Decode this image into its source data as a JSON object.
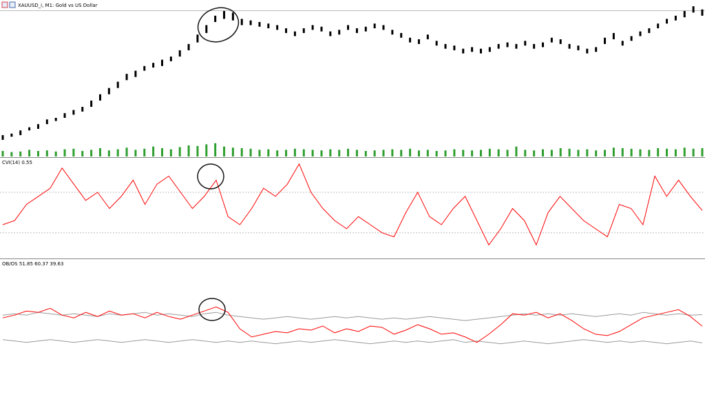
{
  "chart_data": [
    {
      "type": "candlestick",
      "title": "XAUUSD_i, M1: Gold vs US Dollar",
      "color": "#000000",
      "ylim": [
        0,
        100
      ],
      "high": [
        14,
        15,
        17,
        19,
        21,
        24,
        25,
        28,
        30,
        32,
        36,
        40,
        44,
        48,
        53,
        55,
        58,
        60,
        62,
        64,
        68,
        72,
        78,
        84,
        90,
        93,
        92,
        88,
        87,
        86,
        85,
        84,
        82,
        80,
        82,
        84,
        83,
        80,
        81,
        84,
        82,
        83,
        85,
        84,
        81,
        79,
        76,
        75,
        78,
        74,
        72,
        71,
        69,
        70,
        69,
        70,
        72,
        73,
        72,
        74,
        72,
        73,
        76,
        75,
        72,
        71,
        69,
        70,
        76,
        79,
        74,
        77,
        80,
        82,
        85,
        88,
        90,
        93,
        96,
        94
      ],
      "low": [
        11,
        13,
        14,
        17,
        18,
        21,
        23,
        25,
        27,
        29,
        32,
        36,
        40,
        44,
        49,
        51,
        55,
        57,
        58,
        61,
        64,
        68,
        73,
        79,
        86,
        88,
        87,
        84,
        84,
        83,
        82,
        81,
        79,
        77,
        79,
        81,
        80,
        77,
        78,
        81,
        79,
        80,
        82,
        81,
        78,
        76,
        73,
        72,
        75,
        71,
        69,
        68,
        66,
        67,
        66,
        67,
        69,
        70,
        69,
        71,
        69,
        70,
        73,
        72,
        69,
        68,
        66,
        67,
        72,
        75,
        71,
        74,
        77,
        79,
        82,
        85,
        87,
        89,
        92,
        90
      ],
      "volume": {
        "color": "#2e9e2e",
        "ylim": [
          0,
          30
        ],
        "values": [
          10,
          8,
          9,
          12,
          10,
          11,
          9,
          13,
          14,
          10,
          12,
          15,
          11,
          13,
          16,
          12,
          14,
          18,
          15,
          13,
          17,
          20,
          19,
          22,
          24,
          18,
          16,
          15,
          14,
          12,
          13,
          11,
          12,
          14,
          13,
          12,
          11,
          13,
          12,
          14,
          12,
          10,
          11,
          12,
          13,
          12,
          14,
          11,
          12,
          10,
          11,
          13,
          12,
          11,
          12,
          14,
          13,
          12,
          18,
          12,
          11,
          13,
          12,
          15,
          14,
          12,
          13,
          11,
          12,
          16,
          15,
          14,
          13,
          12,
          15,
          14,
          13,
          16,
          14,
          15
        ]
      }
    },
    {
      "type": "line",
      "title": "CVI(14)",
      "color": "#ff0000",
      "ylim": [
        -0.6,
        1.8
      ],
      "levels": [
        0,
        1
      ],
      "values": [
        0.2,
        0.3,
        0.7,
        0.9,
        1.1,
        1.6,
        1.2,
        0.8,
        1.0,
        0.6,
        0.9,
        1.3,
        0.7,
        1.2,
        1.4,
        1.0,
        0.6,
        0.9,
        1.3,
        0.4,
        0.2,
        0.6,
        1.1,
        0.9,
        1.2,
        1.7,
        1.0,
        0.6,
        0.3,
        0.1,
        0.4,
        0.2,
        0.0,
        -0.1,
        0.5,
        1.0,
        0.4,
        0.2,
        0.6,
        0.9,
        0.3,
        -0.3,
        0.1,
        0.6,
        0.3,
        -0.3,
        0.5,
        0.9,
        0.6,
        0.3,
        0.1,
        -0.1,
        0.7,
        0.6,
        0.2,
        1.4,
        0.9,
        1.3,
        0.9,
        0.55
      ]
    },
    {
      "type": "line",
      "title": "OB/OS",
      "ylim": [
        0,
        100
      ],
      "series": [
        {
          "color": "#ff0000",
          "values": [
            58,
            60,
            63,
            62,
            65,
            60,
            58,
            62,
            59,
            63,
            60,
            61,
            58,
            62,
            59,
            57,
            60,
            63,
            66,
            62,
            50,
            44,
            46,
            48,
            47,
            50,
            49,
            52,
            47,
            50,
            48,
            52,
            51,
            46,
            49,
            53,
            50,
            46,
            47,
            44,
            40,
            46,
            53,
            61,
            60,
            62,
            58,
            61,
            56,
            50,
            46,
            45,
            48,
            53,
            58,
            60,
            62,
            64,
            59,
            51.85
          ]
        },
        {
          "color": "#999999",
          "values": [
            60,
            61,
            60,
            62,
            61,
            60,
            61,
            60,
            59,
            61,
            60,
            61,
            62,
            60,
            61,
            60,
            59,
            61,
            62,
            60,
            59,
            58,
            57,
            58,
            59,
            58,
            57,
            58,
            59,
            58,
            59,
            58,
            57,
            58,
            57,
            58,
            59,
            58,
            57,
            56,
            57,
            58,
            59,
            60,
            61,
            60,
            61,
            60,
            61,
            60,
            59,
            60,
            61,
            60,
            62,
            61,
            60,
            61,
            60,
            60.37
          ]
        },
        {
          "color": "#999999",
          "values": [
            42,
            41,
            40,
            41,
            42,
            41,
            40,
            41,
            42,
            41,
            40,
            41,
            42,
            41,
            40,
            41,
            42,
            41,
            40,
            41,
            40,
            41,
            40,
            39,
            40,
            41,
            40,
            41,
            42,
            41,
            40,
            39,
            40,
            41,
            40,
            41,
            40,
            41,
            42,
            40,
            41,
            40,
            39,
            40,
            41,
            40,
            39,
            40,
            41,
            42,
            41,
            40,
            41,
            40,
            41,
            40,
            39,
            40,
            41,
            39.63
          ]
        }
      ]
    }
  ]
}
